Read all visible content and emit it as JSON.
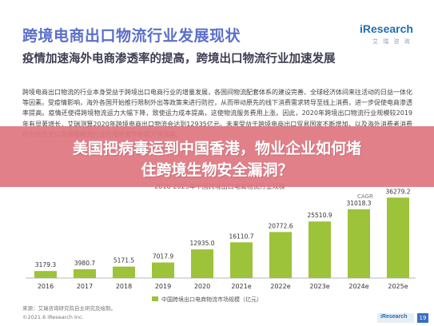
{
  "header": {
    "title": "跨境电商出口物流行业发展现状",
    "logo_main": "iResearch",
    "logo_sub": "艾 瑞 咨 询"
  },
  "subtitle": "疫情加速海外电商渗透率的提高，跨境出口物流行业加速发展",
  "body": "跨境电商出口物流的行业本身受益于跨境出口电商行业的增量发展，各国间物流配套体系的建设完善、全球经济体间来往活动的日益一体化等因素。受疫情影响，海外各国开始推行限制外出等政策来进行防控，从而带动原先的线下消费需求转导至线上消费，进一步促使电商渗透率提高。疫情还使得跨境物流运力大幅下降，致使运力成本提高，这使物流服务费用上涨。因此，2020年跨境出口物流行业规模较2019年有显著增长，艾瑞测算2020年跨境电商出口物流会达到12935亿元。未来受益于跨境电商出口贸易国家不断增加，以及海外消费者消费行为的改变以及跨境物流行业的成熟度不断提升等因素。",
  "banner": {
    "line1": "美国把病毒运到中国香港，物业企业如何堵",
    "line2": "住跨境生物安全漏洞？"
  },
  "chart_data": {
    "type": "bar",
    "title": "2016-2025年中国跨境出口电商物流行业规模",
    "categories": [
      "2016",
      "2017",
      "2018",
      "2019",
      "2020",
      "2021e",
      "2022e",
      "2023e",
      "2024e",
      "2025e"
    ],
    "values": [
      3179.3,
      3980.7,
      5171.5,
      7017.9,
      12935.0,
      16110.7,
      20772.6,
      25510.9,
      31018.3,
      36279.2
    ],
    "value_labels": [
      "3179.3",
      "3980.7",
      "5171.5",
      "7017.9",
      "12935.0",
      "16110.7",
      "20772.6",
      "25510.9",
      "31018.3",
      "36279.2"
    ],
    "ylim": [
      0,
      40000
    ],
    "bar_color": "#9cc33a",
    "annotation": "CAGR",
    "legend": [
      {
        "label": "中国跨境出口电商物流市场规模（亿元）",
        "color": "#9cc33a"
      }
    ],
    "legend_position": "bottom"
  },
  "footer": {
    "source": "来源：艾瑞咨询研究院自主研究及绘制。",
    "copyright": "©2021.6 iResearch Inc.",
    "brand": "iResearch",
    "page": "19"
  }
}
